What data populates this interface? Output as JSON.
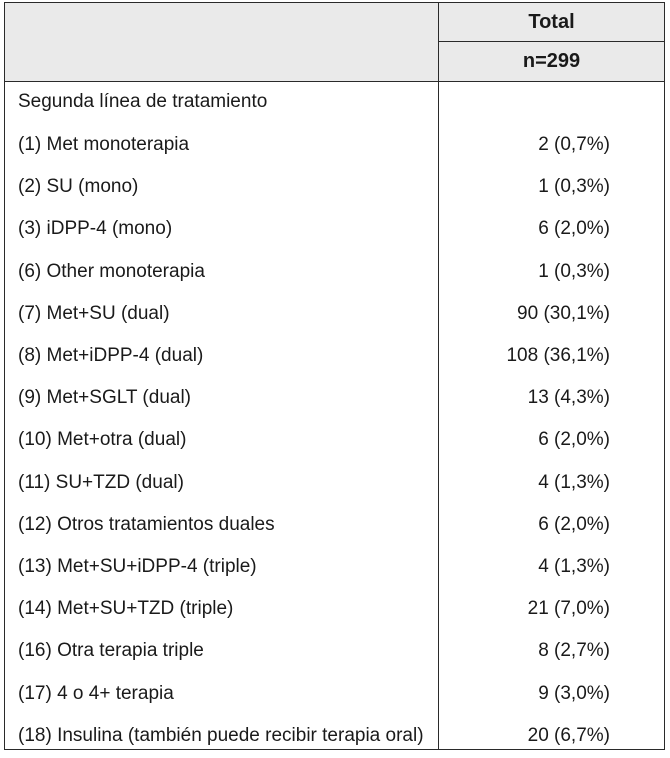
{
  "header": {
    "col_title": "Total",
    "col_n": "n=299"
  },
  "section_label": "Segunda línea de tratamiento",
  "rows": [
    {
      "label": "(1) Met monoterapia",
      "value": "2 (0,7%)"
    },
    {
      "label": "(2) SU (mono)",
      "value": "1 (0,3%)"
    },
    {
      "label": "(3) iDPP-4 (mono)",
      "value": "6 (2,0%)"
    },
    {
      "label": "(6) Other monoterapia",
      "value": "1 (0,3%)"
    },
    {
      "label": "(7) Met+SU (dual)",
      "value": "90 (30,1%)"
    },
    {
      "label": "(8) Met+iDPP-4 (dual)",
      "value": "108 (36,1%)"
    },
    {
      "label": "(9) Met+SGLT (dual)",
      "value": "13 (4,3%)"
    },
    {
      "label": "(10) Met+otra (dual)",
      "value": "6 (2,0%)"
    },
    {
      "label": "(11) SU+TZD (dual)",
      "value": "4 (1,3%)"
    },
    {
      "label": "(12) Otros tratamientos duales",
      "value": "6 (2,0%)"
    },
    {
      "label": "(13) Met+SU+iDPP-4 (triple)",
      "value": "4 (1,3%)"
    },
    {
      "label": "(14) Met+SU+TZD (triple)",
      "value": "21 (7,0%)"
    },
    {
      "label": "(16) Otra terapia triple",
      "value": "8 (2,7%)"
    },
    {
      "label": "(17) 4 o 4+ terapia",
      "value": "9 (3,0%)"
    },
    {
      "label": "(18) Insulina (también puede recibir terapia oral)",
      "value": "20 (6,7%)"
    }
  ]
}
